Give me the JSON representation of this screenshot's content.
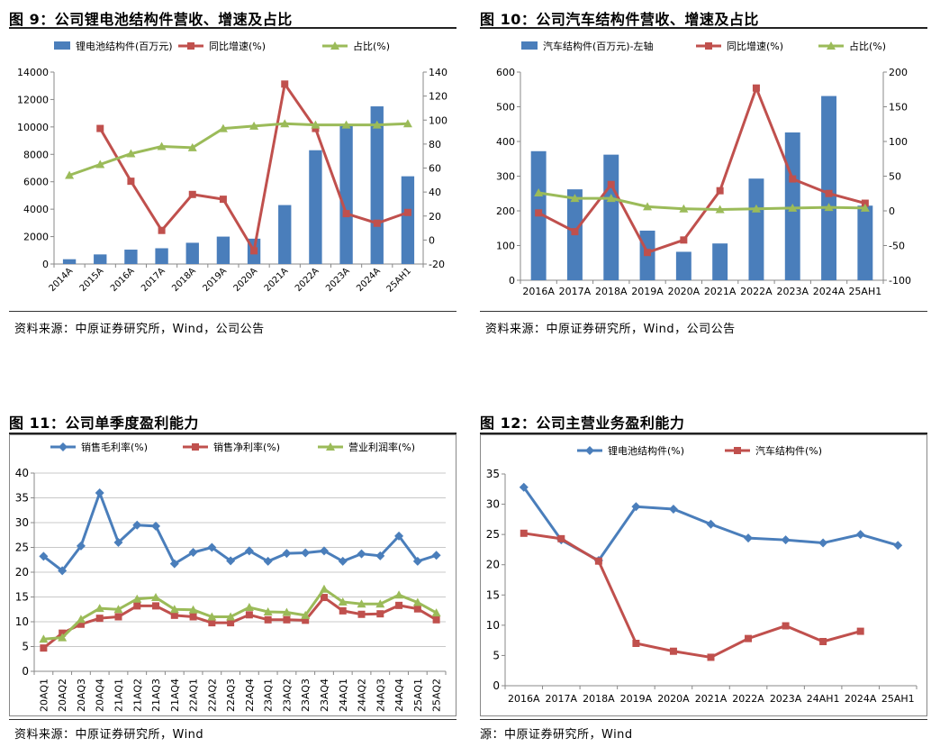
{
  "chart_data": [
    {
      "type": "bar+line",
      "title": "图 9：公司锂电池结构件营收、增速及占比",
      "source": "资料来源：中原证券研究所，Wind，公司公告",
      "categories": [
        "2014A",
        "2015A",
        "2016A",
        "2017A",
        "2018A",
        "2019A",
        "2020A",
        "2021A",
        "2022A",
        "2023A",
        "2024A",
        "25AH1"
      ],
      "left_axis": {
        "ylim": [
          0,
          14000
        ],
        "ticks": [
          "0",
          "2000",
          "4000",
          "6000",
          "8000",
          "10000",
          "12000",
          "14000"
        ]
      },
      "right_axis": {
        "ylim": [
          -20,
          140
        ],
        "ticks": [
          "-20",
          "0",
          "20",
          "40",
          "60",
          "80",
          "100",
          "120",
          "140"
        ]
      },
      "series": [
        {
          "name": "锂电池结构件(百万元)",
          "kind": "bar",
          "axis": "left",
          "color": "#4a7ebb",
          "values": [
            350,
            700,
            1050,
            1150,
            1550,
            2000,
            1850,
            4300,
            8300,
            10100,
            11500,
            6400
          ]
        },
        {
          "name": "同比增速(%)",
          "kind": "line",
          "axis": "right",
          "color": "#c0504d",
          "values": [
            null,
            93,
            49,
            8,
            38,
            34,
            -9,
            130,
            93,
            22,
            14,
            23
          ]
        },
        {
          "name": "占比(%)",
          "kind": "line",
          "axis": "right",
          "color": "#9bbb59",
          "values": [
            54,
            63,
            72,
            78,
            77,
            93,
            95,
            97,
            96,
            96,
            96,
            97
          ]
        }
      ]
    },
    {
      "type": "bar+line",
      "title": "图 10：公司汽车结构件营收、增速及占比",
      "source": "资料来源：中原证券研究所，Wind，公司公告",
      "categories": [
        "2016A",
        "2017A",
        "2018A",
        "2019A",
        "2020A",
        "2021A",
        "2022A",
        "2023A",
        "2024A",
        "25AH1"
      ],
      "left_axis": {
        "ylim": [
          0,
          600
        ],
        "ticks": [
          "0",
          "100",
          "200",
          "300",
          "400",
          "500",
          "600"
        ]
      },
      "right_axis": {
        "ylim": [
          -100,
          200
        ],
        "ticks": [
          "-100",
          "-50",
          "0",
          "50",
          "100",
          "150",
          "200"
        ]
      },
      "series": [
        {
          "name": "汽车结构件(百万元)-左轴",
          "kind": "bar",
          "axis": "left",
          "color": "#4a7ebb",
          "values": [
            372,
            262,
            362,
            143,
            82,
            106,
            293,
            426,
            531,
            215
          ]
        },
        {
          "name": "同比增速(%)",
          "kind": "line",
          "axis": "right",
          "color": "#c0504d",
          "values": [
            -3,
            -30,
            38,
            -60,
            -42,
            29,
            177,
            46,
            25,
            11
          ]
        },
        {
          "name": "占比(%)",
          "kind": "line",
          "axis": "right",
          "color": "#9bbb59",
          "values": [
            26,
            18,
            18,
            6,
            3,
            2,
            3,
            4,
            5,
            4
          ]
        }
      ]
    },
    {
      "type": "line",
      "title": "图 11：公司单季度盈利能力",
      "source": "资料来源：中原证券研究所，Wind",
      "categories": [
        "20AQ1",
        "20AQ2",
        "20AQ3",
        "20AQ4",
        "21AQ1",
        "21AQ2",
        "21AQ3",
        "21AQ4",
        "22AQ1",
        "22AQ2",
        "22AQ3",
        "22AQ4",
        "23AQ1",
        "23AQ2",
        "23AQ3",
        "23AQ4",
        "24AQ1",
        "24AQ2",
        "24AQ3",
        "24AQ4",
        "25AQ1",
        "25AQ2"
      ],
      "ylim": [
        0,
        40
      ],
      "ticks": [
        "0",
        "5",
        "10",
        "15",
        "20",
        "25",
        "30",
        "35",
        "40"
      ],
      "series": [
        {
          "name": "销售毛利率(%)",
          "color": "#4a7ebb",
          "marker": "diamond",
          "values": [
            23.2,
            20.3,
            25.3,
            36.0,
            26.0,
            29.5,
            29.3,
            21.7,
            24.0,
            25.0,
            22.3,
            24.3,
            22.2,
            23.8,
            23.9,
            24.3,
            22.2,
            23.7,
            23.3,
            27.3,
            22.2,
            23.4
          ]
        },
        {
          "name": "销售净利率(%)",
          "color": "#c0504d",
          "marker": "square",
          "values": [
            4.7,
            7.7,
            9.5,
            10.7,
            11.0,
            13.2,
            13.2,
            11.3,
            11.0,
            9.8,
            9.8,
            11.4,
            10.4,
            10.4,
            10.3,
            14.9,
            12.2,
            11.5,
            11.6,
            13.3,
            12.6,
            10.4
          ]
        },
        {
          "name": "营业利润率(%)",
          "color": "#9bbb59",
          "marker": "triangle",
          "values": [
            6.5,
            6.8,
            10.5,
            12.7,
            12.5,
            14.6,
            14.9,
            12.5,
            12.4,
            11.0,
            11.0,
            12.9,
            12.0,
            11.9,
            11.3,
            16.6,
            14.0,
            13.6,
            13.6,
            15.4,
            13.9,
            11.8
          ]
        }
      ]
    },
    {
      "type": "line",
      "title": "图 12：公司主营业务盈利能力",
      "source": "源：中原证券研究所，Wind",
      "categories": [
        "2016A",
        "2017A",
        "2018A",
        "2019A",
        "2020A",
        "2021A",
        "2022A",
        "2023A",
        "24AH1",
        "2024A",
        "25AH1"
      ],
      "ylim": [
        0,
        35
      ],
      "ticks": [
        "0",
        "5",
        "10",
        "15",
        "20",
        "25",
        "30",
        "35"
      ],
      "series": [
        {
          "name": "锂电池结构件(%)",
          "color": "#4a7ebb",
          "marker": "diamond",
          "values": [
            32.8,
            24.1,
            20.7,
            29.6,
            29.2,
            26.7,
            24.4,
            24.1,
            23.6,
            25.0,
            23.2
          ]
        },
        {
          "name": "汽车结构件(%)",
          "color": "#c0504d",
          "marker": "square",
          "values": [
            25.2,
            24.3,
            20.6,
            7.0,
            5.7,
            4.7,
            7.8,
            9.9,
            7.3,
            9.0,
            null
          ]
        }
      ]
    }
  ]
}
